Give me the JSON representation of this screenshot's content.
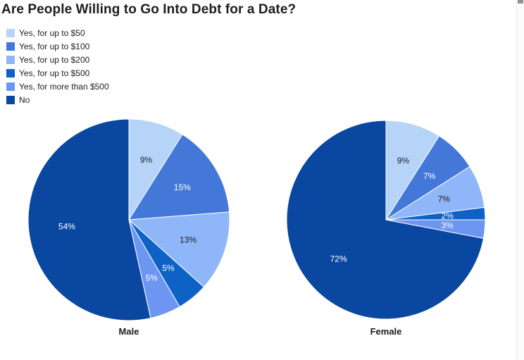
{
  "chart_data": {
    "type": "pie",
    "title": "Are People Willing to Go Into Debt for a Date?",
    "categories": [
      "Yes, for up to $50",
      "Yes, for up to $100",
      "Yes, for up to $200",
      "Yes, for up to $500",
      "Yes, for more than $500",
      "No"
    ],
    "colors": [
      "#b5d4f8",
      "#4478d8",
      "#8fb6f8",
      "#0f62c5",
      "#6c96f2",
      "#0a47a0"
    ],
    "label_text_colors": [
      "#1d1d1d",
      "#ffffff",
      "#1d1d1d",
      "#ffffff",
      "#ffffff",
      "#ffffff"
    ],
    "series": [
      {
        "name": "Male",
        "values": [
          9,
          15,
          13,
          5,
          5,
          54
        ],
        "value_labels": [
          "9%",
          "15%",
          "13%",
          "5%",
          "5%",
          "54%"
        ]
      },
      {
        "name": "Female",
        "values": [
          9,
          7,
          7,
          2,
          3,
          72
        ],
        "value_labels": [
          "9%",
          "7%",
          "7%",
          "2%",
          "3%",
          "72%"
        ]
      }
    ],
    "value_format": "percent",
    "legend_position": "top-left",
    "start_angle_deg": 0,
    "direction": "clockwise",
    "slice_border_color": "#ffffff"
  }
}
